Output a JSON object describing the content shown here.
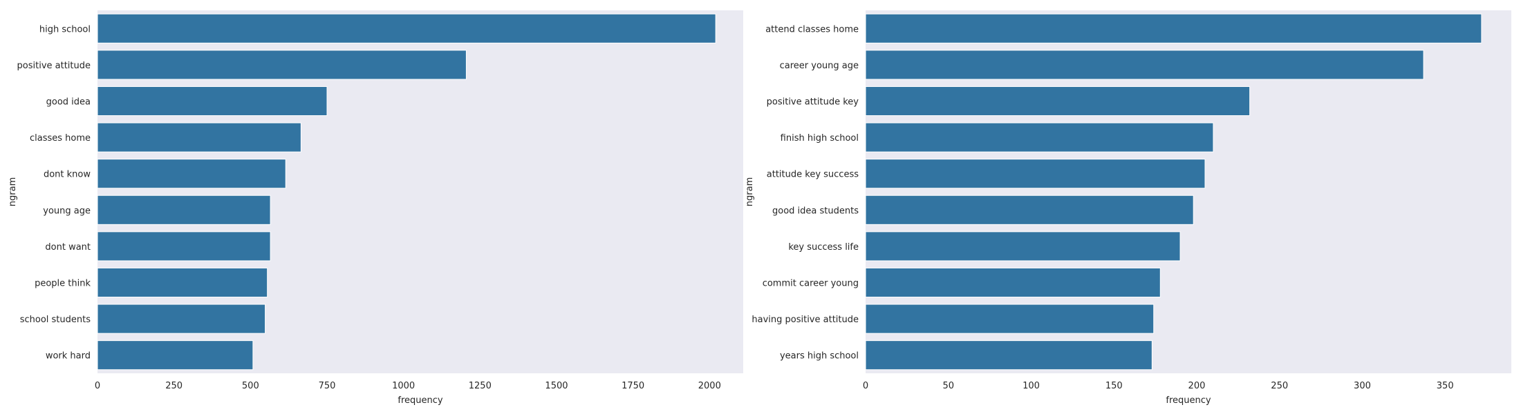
{
  "chart_data": [
    {
      "type": "bar",
      "orientation": "horizontal",
      "categories": [
        "high school",
        "positive attitude",
        "good idea",
        "classes home",
        "dont know",
        "young age",
        "dont want",
        "people think",
        "school students",
        "work hard"
      ],
      "values": [
        2020,
        1205,
        750,
        665,
        615,
        565,
        565,
        555,
        548,
        508
      ],
      "xlabel": "frequency",
      "ylabel": "ngram",
      "xlim": [
        0,
        2110
      ],
      "xticks": [
        0,
        250,
        500,
        750,
        1000,
        1250,
        1500,
        1750,
        2000
      ],
      "grid": false,
      "color": "#3274a1"
    },
    {
      "type": "bar",
      "orientation": "horizontal",
      "categories": [
        "attend classes home",
        "career young age",
        "positive attitude key",
        "finish high school",
        "attitude key success",
        "good idea students",
        "key success life",
        "commit career young",
        "having positive attitude",
        "years high school"
      ],
      "values": [
        372,
        337,
        232,
        210,
        205,
        198,
        190,
        178,
        174,
        173
      ],
      "xlabel": "frequency",
      "ylabel": "ngram",
      "xlim": [
        0,
        390
      ],
      "xticks": [
        0,
        50,
        100,
        150,
        200,
        250,
        300,
        350
      ],
      "grid": false,
      "color": "#3274a1"
    }
  ]
}
